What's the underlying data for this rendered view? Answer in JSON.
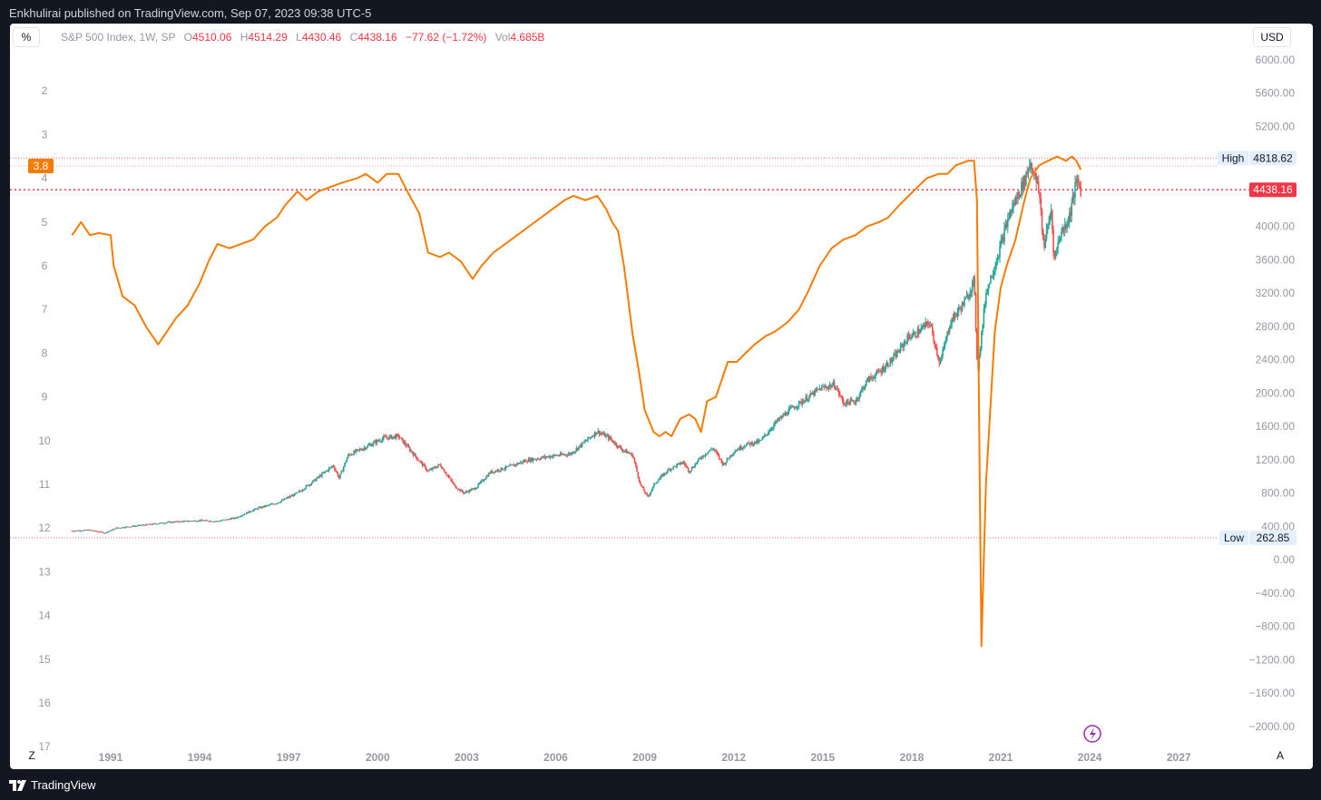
{
  "header": {
    "text": "Enkhulirai published on TradingView.com, Sep 07, 2023 09:38 UTC-5"
  },
  "toolbar": {
    "percent_label": "%",
    "currency_label": "USD",
    "z_label": "Z",
    "a_label": "A"
  },
  "legend": {
    "symbol": "S&P 500 Index, 1W, SP",
    "open_key": "O",
    "open": "4510.06",
    "high_key": "H",
    "high": "4514.29",
    "low_key": "L",
    "low": "4430.46",
    "close_key": "C",
    "close": "4438.16",
    "change": "−77.62 (−1.72%)",
    "vol_key": "Vol",
    "vol": "4.685B"
  },
  "footer": {
    "brand": "TradingView"
  },
  "colors": {
    "orange": "#f57c00",
    "up": "#26a69a",
    "down": "#ef5350",
    "red": "#f23645",
    "axis_text": "#9598a1"
  },
  "chart_data": {
    "type": "line",
    "x_ticks": [
      "1991",
      "1994",
      "1997",
      "2000",
      "2003",
      "2006",
      "2009",
      "2012",
      "2015",
      "2018",
      "2021",
      "2024",
      "2027"
    ],
    "left_axis": {
      "ticks": [
        "2",
        "3",
        "4",
        "5",
        "6",
        "7",
        "8",
        "9",
        "10",
        "11",
        "12",
        "13",
        "14",
        "15",
        "16",
        "17"
      ],
      "inverted": true,
      "range": [
        1.0,
        17.5
      ]
    },
    "right_axis": {
      "ticks": [
        "6000.00",
        "5600.00",
        "5200.00",
        "4800.00",
        "4400.00",
        "4000.00",
        "3600.00",
        "3200.00",
        "2800.00",
        "2400.00",
        "2000.00",
        "1600.00",
        "1200.00",
        "800.00",
        "400.00",
        "0.00",
        "−400.00",
        "−800.00",
        "−1200.00",
        "−1600.00",
        "−2000.00"
      ],
      "range": [
        -2150,
        6150
      ]
    },
    "series": [
      {
        "type": "line",
        "color": "#f57c00",
        "axis": "left",
        "last_value_label": "3.8",
        "points": [
          [
            1989.7,
            5.3
          ],
          [
            1990.0,
            5.0
          ],
          [
            1990.3,
            5.3
          ],
          [
            1990.6,
            5.25
          ],
          [
            1991.0,
            5.3
          ],
          [
            1991.1,
            6.0
          ],
          [
            1991.4,
            6.7
          ],
          [
            1991.8,
            6.9
          ],
          [
            1992.2,
            7.4
          ],
          [
            1992.6,
            7.8
          ],
          [
            1992.9,
            7.5
          ],
          [
            1993.2,
            7.2
          ],
          [
            1993.6,
            6.9
          ],
          [
            1994.0,
            6.4
          ],
          [
            1994.3,
            5.9
          ],
          [
            1994.6,
            5.5
          ],
          [
            1995.0,
            5.6
          ],
          [
            1995.4,
            5.5
          ],
          [
            1995.8,
            5.4
          ],
          [
            1996.2,
            5.1
          ],
          [
            1996.6,
            4.9
          ],
          [
            1996.9,
            4.6
          ],
          [
            1997.3,
            4.3
          ],
          [
            1997.6,
            4.5
          ],
          [
            1998.0,
            4.3
          ],
          [
            1998.4,
            4.2
          ],
          [
            1998.8,
            4.1
          ],
          [
            1999.3,
            4.0
          ],
          [
            1999.6,
            3.9
          ],
          [
            2000.0,
            4.1
          ],
          [
            2000.3,
            3.9
          ],
          [
            2000.7,
            3.9
          ],
          [
            2001.0,
            4.3
          ],
          [
            2001.4,
            4.8
          ],
          [
            2001.7,
            5.7
          ],
          [
            2002.1,
            5.8
          ],
          [
            2002.4,
            5.7
          ],
          [
            2002.8,
            5.9
          ],
          [
            2003.2,
            6.3
          ],
          [
            2003.5,
            6.0
          ],
          [
            2003.9,
            5.7
          ],
          [
            2004.3,
            5.5
          ],
          [
            2004.7,
            5.3
          ],
          [
            2005.1,
            5.1
          ],
          [
            2005.5,
            4.9
          ],
          [
            2005.9,
            4.7
          ],
          [
            2006.3,
            4.5
          ],
          [
            2006.6,
            4.4
          ],
          [
            2007.0,
            4.5
          ],
          [
            2007.4,
            4.4
          ],
          [
            2007.7,
            4.7
          ],
          [
            2007.9,
            5.0
          ],
          [
            2008.1,
            5.2
          ],
          [
            2008.3,
            6.0
          ],
          [
            2008.6,
            7.6
          ],
          [
            2008.8,
            8.4
          ],
          [
            2009.0,
            9.3
          ],
          [
            2009.3,
            9.8
          ],
          [
            2009.5,
            9.9
          ],
          [
            2009.7,
            9.8
          ],
          [
            2009.9,
            9.9
          ],
          [
            2010.2,
            9.5
          ],
          [
            2010.5,
            9.4
          ],
          [
            2010.7,
            9.5
          ],
          [
            2010.9,
            9.8
          ],
          [
            2011.1,
            9.1
          ],
          [
            2011.4,
            9.0
          ],
          [
            2011.8,
            8.2
          ],
          [
            2012.1,
            8.2
          ],
          [
            2012.4,
            8.0
          ],
          [
            2012.7,
            7.8
          ],
          [
            2013.1,
            7.6
          ],
          [
            2013.4,
            7.5
          ],
          [
            2013.8,
            7.3
          ],
          [
            2014.2,
            7.0
          ],
          [
            2014.5,
            6.6
          ],
          [
            2014.9,
            6.0
          ],
          [
            2015.3,
            5.6
          ],
          [
            2015.7,
            5.4
          ],
          [
            2016.1,
            5.3
          ],
          [
            2016.5,
            5.1
          ],
          [
            2016.9,
            5.0
          ],
          [
            2017.2,
            4.9
          ],
          [
            2017.6,
            4.6
          ],
          [
            2017.9,
            4.4
          ],
          [
            2018.2,
            4.2
          ],
          [
            2018.5,
            4.0
          ],
          [
            2018.9,
            3.9
          ],
          [
            2019.2,
            3.9
          ],
          [
            2019.5,
            3.7
          ],
          [
            2019.9,
            3.6
          ],
          [
            2020.1,
            3.6
          ],
          [
            2020.2,
            4.5
          ],
          [
            2020.35,
            14.7
          ],
          [
            2020.5,
            11.0
          ],
          [
            2020.8,
            7.5
          ],
          [
            2021.0,
            6.5
          ],
          [
            2021.2,
            6.0
          ],
          [
            2021.5,
            5.4
          ],
          [
            2021.8,
            4.5
          ],
          [
            2022.0,
            4.0
          ],
          [
            2022.3,
            3.7
          ],
          [
            2022.6,
            3.6
          ],
          [
            2022.9,
            3.5
          ],
          [
            2023.2,
            3.6
          ],
          [
            2023.4,
            3.5
          ],
          [
            2023.55,
            3.6
          ],
          [
            2023.7,
            3.8
          ]
        ]
      },
      {
        "type": "candlestick",
        "name": "S&P 500 Index, 1W, SP",
        "axis": "right",
        "closes": [
          [
            1989.7,
            345
          ],
          [
            1990.3,
            355
          ],
          [
            1990.8,
            320
          ],
          [
            1991.2,
            380
          ],
          [
            1992.0,
            410
          ],
          [
            1993.0,
            450
          ],
          [
            1994.0,
            470
          ],
          [
            1994.6,
            460
          ],
          [
            1995.2,
            500
          ],
          [
            1995.9,
            610
          ],
          [
            1996.6,
            680
          ],
          [
            1997.3,
            800
          ],
          [
            1997.9,
            960
          ],
          [
            1998.5,
            1130
          ],
          [
            1998.7,
            980
          ],
          [
            1999.0,
            1250
          ],
          [
            1999.7,
            1370
          ],
          [
            2000.2,
            1460
          ],
          [
            2000.7,
            1480
          ],
          [
            2001.2,
            1270
          ],
          [
            2001.7,
            1060
          ],
          [
            2002.1,
            1140
          ],
          [
            2002.6,
            880
          ],
          [
            2002.9,
            800
          ],
          [
            2003.3,
            860
          ],
          [
            2003.8,
            1050
          ],
          [
            2004.4,
            1110
          ],
          [
            2005.0,
            1190
          ],
          [
            2005.8,
            1240
          ],
          [
            2006.5,
            1270
          ],
          [
            2007.0,
            1420
          ],
          [
            2007.4,
            1540
          ],
          [
            2007.8,
            1460
          ],
          [
            2008.2,
            1330
          ],
          [
            2008.6,
            1250
          ],
          [
            2008.85,
            900
          ],
          [
            2009.1,
            750
          ],
          [
            2009.35,
            920
          ],
          [
            2009.8,
            1080
          ],
          [
            2010.3,
            1170
          ],
          [
            2010.5,
            1060
          ],
          [
            2010.9,
            1230
          ],
          [
            2011.3,
            1340
          ],
          [
            2011.65,
            1140
          ],
          [
            2012.0,
            1300
          ],
          [
            2012.4,
            1380
          ],
          [
            2012.9,
            1420
          ],
          [
            2013.4,
            1640
          ],
          [
            2013.9,
            1800
          ],
          [
            2014.4,
            1920
          ],
          [
            2014.9,
            2050
          ],
          [
            2015.4,
            2100
          ],
          [
            2015.7,
            1880
          ],
          [
            2016.1,
            1900
          ],
          [
            2016.5,
            2150
          ],
          [
            2016.9,
            2250
          ],
          [
            2017.4,
            2420
          ],
          [
            2017.9,
            2680
          ],
          [
            2018.1,
            2700
          ],
          [
            2018.6,
            2850
          ],
          [
            2018.95,
            2350
          ],
          [
            2019.3,
            2850
          ],
          [
            2019.8,
            3100
          ],
          [
            2020.1,
            3350
          ],
          [
            2020.22,
            2250
          ],
          [
            2020.5,
            3200
          ],
          [
            2020.9,
            3650
          ],
          [
            2021.3,
            4150
          ],
          [
            2021.8,
            4550
          ],
          [
            2022.0,
            4780
          ],
          [
            2022.3,
            4400
          ],
          [
            2022.45,
            3750
          ],
          [
            2022.7,
            4200
          ],
          [
            2022.8,
            3600
          ],
          [
            2023.0,
            3900
          ],
          [
            2023.3,
            4100
          ],
          [
            2023.5,
            4450
          ],
          [
            2023.6,
            4550
          ],
          [
            2023.7,
            4438
          ]
        ],
        "high_label": "High",
        "high_value": "4818.62",
        "low_label": "Low",
        "low_value": "262.85",
        "last_value": "4438.16"
      }
    ],
    "grid": false,
    "legend_position": "top-left"
  }
}
